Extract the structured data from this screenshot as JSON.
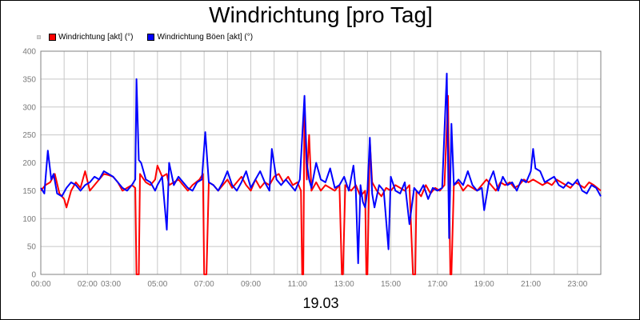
{
  "title": "Windrichtung [pro Tag]",
  "date_label": "19.03",
  "legend": [
    {
      "label": "Windrichtung [akt] (°)",
      "color": "#ff0000"
    },
    {
      "label": "Windrichtung Böen [akt] (°)",
      "color": "#0000ff"
    }
  ],
  "chart_data": {
    "type": "line",
    "title": "Windrichtung [pro Tag]",
    "xlabel": "19.03",
    "ylabel": "",
    "ylim": [
      0,
      400
    ],
    "xlim": [
      0,
      24
    ],
    "grid": true,
    "legend_position": "top-left",
    "y_ticks": [
      "0",
      "50",
      "100",
      "150",
      "200",
      "250",
      "300",
      "350",
      "400"
    ],
    "x_ticks": [
      "00:00",
      "02:00",
      "03:00",
      "05:00",
      "07:00",
      "09:00",
      "11:00",
      "13:00",
      "15:00",
      "17:00",
      "19:00",
      "21:00",
      "23:00"
    ],
    "series": [
      {
        "name": "Windrichtung [akt] (°)",
        "color": "#ff0000",
        "points": [
          [
            0.0,
            150
          ],
          [
            0.2,
            160
          ],
          [
            0.4,
            165
          ],
          [
            0.6,
            180
          ],
          [
            0.8,
            145
          ],
          [
            1.0,
            135
          ],
          [
            1.1,
            120
          ],
          [
            1.3,
            150
          ],
          [
            1.5,
            165
          ],
          [
            1.7,
            155
          ],
          [
            1.9,
            185
          ],
          [
            2.1,
            150
          ],
          [
            2.3,
            160
          ],
          [
            2.5,
            170
          ],
          [
            2.7,
            180
          ],
          [
            2.9,
            178
          ],
          [
            3.1,
            175
          ],
          [
            3.3,
            165
          ],
          [
            3.5,
            150
          ],
          [
            3.7,
            155
          ],
          [
            3.9,
            160
          ],
          [
            4.05,
            155
          ],
          [
            4.1,
            0
          ],
          [
            4.2,
            0
          ],
          [
            4.25,
            180
          ],
          [
            4.5,
            165
          ],
          [
            4.7,
            160
          ],
          [
            4.9,
            170
          ],
          [
            5.0,
            195
          ],
          [
            5.2,
            175
          ],
          [
            5.4,
            180
          ],
          [
            5.5,
            160
          ],
          [
            5.7,
            165
          ],
          [
            5.9,
            170
          ],
          [
            6.1,
            160
          ],
          [
            6.3,
            150
          ],
          [
            6.5,
            160
          ],
          [
            6.8,
            170
          ],
          [
            6.95,
            180
          ],
          [
            7.0,
            0
          ],
          [
            7.1,
            0
          ],
          [
            7.2,
            165
          ],
          [
            7.4,
            160
          ],
          [
            7.6,
            150
          ],
          [
            7.8,
            160
          ],
          [
            8.0,
            170
          ],
          [
            8.2,
            155
          ],
          [
            8.4,
            165
          ],
          [
            8.6,
            175
          ],
          [
            8.8,
            160
          ],
          [
            9.0,
            150
          ],
          [
            9.2,
            170
          ],
          [
            9.4,
            155
          ],
          [
            9.6,
            165
          ],
          [
            9.8,
            160
          ],
          [
            10.0,
            175
          ],
          [
            10.2,
            180
          ],
          [
            10.4,
            165
          ],
          [
            10.6,
            175
          ],
          [
            10.8,
            160
          ],
          [
            11.0,
            165
          ],
          [
            11.15,
            150
          ],
          [
            11.2,
            0
          ],
          [
            11.25,
            0
          ],
          [
            11.3,
            305
          ],
          [
            11.4,
            170
          ],
          [
            11.5,
            250
          ],
          [
            11.6,
            150
          ],
          [
            11.8,
            165
          ],
          [
            12.0,
            150
          ],
          [
            12.2,
            160
          ],
          [
            12.4,
            155
          ],
          [
            12.6,
            150
          ],
          [
            12.8,
            160
          ],
          [
            12.9,
            0
          ],
          [
            12.95,
            0
          ],
          [
            13.05,
            160
          ],
          [
            13.3,
            150
          ],
          [
            13.5,
            160
          ],
          [
            13.7,
            140
          ],
          [
            13.9,
            150
          ],
          [
            13.95,
            0
          ],
          [
            14.0,
            0
          ],
          [
            14.1,
            240
          ],
          [
            14.2,
            165
          ],
          [
            14.4,
            150
          ],
          [
            14.6,
            140
          ],
          [
            14.8,
            155
          ],
          [
            15.0,
            150
          ],
          [
            15.2,
            160
          ],
          [
            15.4,
            155
          ],
          [
            15.6,
            150
          ],
          [
            15.8,
            160
          ],
          [
            15.95,
            0
          ],
          [
            16.05,
            0
          ],
          [
            16.1,
            150
          ],
          [
            16.3,
            140
          ],
          [
            16.5,
            160
          ],
          [
            16.7,
            145
          ],
          [
            16.9,
            155
          ],
          [
            17.1,
            150
          ],
          [
            17.3,
            160
          ],
          [
            17.45,
            320
          ],
          [
            17.55,
            0
          ],
          [
            17.6,
            0
          ],
          [
            17.7,
            160
          ],
          [
            17.9,
            165
          ],
          [
            18.1,
            150
          ],
          [
            18.3,
            160
          ],
          [
            18.5,
            155
          ],
          [
            18.7,
            150
          ],
          [
            18.9,
            160
          ],
          [
            19.1,
            170
          ],
          [
            19.3,
            160
          ],
          [
            19.5,
            150
          ],
          [
            19.7,
            165
          ],
          [
            19.9,
            160
          ],
          [
            20.1,
            165
          ],
          [
            20.3,
            155
          ],
          [
            20.5,
            160
          ],
          [
            20.7,
            170
          ],
          [
            20.9,
            165
          ],
          [
            21.1,
            170
          ],
          [
            21.3,
            165
          ],
          [
            21.5,
            160
          ],
          [
            21.7,
            165
          ],
          [
            21.9,
            160
          ],
          [
            22.1,
            170
          ],
          [
            22.3,
            165
          ],
          [
            22.5,
            160
          ],
          [
            22.7,
            155
          ],
          [
            22.9,
            165
          ],
          [
            23.1,
            160
          ],
          [
            23.3,
            155
          ],
          [
            23.5,
            165
          ],
          [
            23.7,
            160
          ],
          [
            24.0,
            150
          ]
        ]
      },
      {
        "name": "Windrichtung Böen [akt] (°)",
        "color": "#0000ff",
        "points": [
          [
            0.0,
            155
          ],
          [
            0.15,
            145
          ],
          [
            0.3,
            222
          ],
          [
            0.45,
            170
          ],
          [
            0.55,
            180
          ],
          [
            0.7,
            145
          ],
          [
            0.9,
            140
          ],
          [
            1.1,
            155
          ],
          [
            1.3,
            165
          ],
          [
            1.5,
            160
          ],
          [
            1.7,
            150
          ],
          [
            1.9,
            160
          ],
          [
            2.1,
            165
          ],
          [
            2.3,
            175
          ],
          [
            2.5,
            170
          ],
          [
            2.7,
            185
          ],
          [
            2.9,
            180
          ],
          [
            3.1,
            175
          ],
          [
            3.3,
            165
          ],
          [
            3.5,
            155
          ],
          [
            3.7,
            150
          ],
          [
            3.9,
            160
          ],
          [
            4.05,
            170
          ],
          [
            4.1,
            350
          ],
          [
            4.2,
            205
          ],
          [
            4.3,
            200
          ],
          [
            4.5,
            170
          ],
          [
            4.7,
            165
          ],
          [
            4.9,
            150
          ],
          [
            5.0,
            160
          ],
          [
            5.2,
            175
          ],
          [
            5.4,
            80
          ],
          [
            5.5,
            200
          ],
          [
            5.7,
            160
          ],
          [
            5.9,
            175
          ],
          [
            6.1,
            165
          ],
          [
            6.3,
            155
          ],
          [
            6.5,
            150
          ],
          [
            6.7,
            165
          ],
          [
            6.9,
            170
          ],
          [
            7.05,
            255
          ],
          [
            7.2,
            165
          ],
          [
            7.4,
            160
          ],
          [
            7.6,
            150
          ],
          [
            7.8,
            165
          ],
          [
            8.0,
            185
          ],
          [
            8.2,
            160
          ],
          [
            8.4,
            150
          ],
          [
            8.6,
            165
          ],
          [
            8.8,
            185
          ],
          [
            9.0,
            155
          ],
          [
            9.2,
            170
          ],
          [
            9.4,
            185
          ],
          [
            9.6,
            165
          ],
          [
            9.8,
            150
          ],
          [
            9.9,
            225
          ],
          [
            10.1,
            170
          ],
          [
            10.3,
            160
          ],
          [
            10.5,
            170
          ],
          [
            10.7,
            160
          ],
          [
            10.9,
            150
          ],
          [
            11.1,
            170
          ],
          [
            11.3,
            320
          ],
          [
            11.4,
            200
          ],
          [
            11.5,
            170
          ],
          [
            11.6,
            155
          ],
          [
            11.8,
            200
          ],
          [
            12.0,
            170
          ],
          [
            12.2,
            165
          ],
          [
            12.4,
            190
          ],
          [
            12.6,
            155
          ],
          [
            12.8,
            160
          ],
          [
            13.0,
            175
          ],
          [
            13.2,
            150
          ],
          [
            13.4,
            195
          ],
          [
            13.5,
            150
          ],
          [
            13.6,
            20
          ],
          [
            13.7,
            160
          ],
          [
            13.8,
            130
          ],
          [
            13.9,
            120
          ],
          [
            14.0,
            150
          ],
          [
            14.1,
            245
          ],
          [
            14.2,
            145
          ],
          [
            14.3,
            120
          ],
          [
            14.5,
            160
          ],
          [
            14.7,
            150
          ],
          [
            14.9,
            45
          ],
          [
            15.0,
            175
          ],
          [
            15.2,
            150
          ],
          [
            15.4,
            145
          ],
          [
            15.6,
            165
          ],
          [
            15.8,
            90
          ],
          [
            16.0,
            155
          ],
          [
            16.2,
            145
          ],
          [
            16.4,
            160
          ],
          [
            16.6,
            135
          ],
          [
            16.8,
            155
          ],
          [
            17.0,
            150
          ],
          [
            17.2,
            155
          ],
          [
            17.4,
            360
          ],
          [
            17.5,
            65
          ],
          [
            17.6,
            270
          ],
          [
            17.7,
            160
          ],
          [
            17.9,
            170
          ],
          [
            18.1,
            160
          ],
          [
            18.3,
            185
          ],
          [
            18.5,
            160
          ],
          [
            18.7,
            150
          ],
          [
            18.9,
            155
          ],
          [
            19.0,
            115
          ],
          [
            19.2,
            165
          ],
          [
            19.4,
            185
          ],
          [
            19.6,
            150
          ],
          [
            19.8,
            175
          ],
          [
            20.0,
            160
          ],
          [
            20.2,
            165
          ],
          [
            20.4,
            150
          ],
          [
            20.6,
            170
          ],
          [
            20.8,
            165
          ],
          [
            21.0,
            185
          ],
          [
            21.1,
            225
          ],
          [
            21.2,
            190
          ],
          [
            21.4,
            185
          ],
          [
            21.6,
            165
          ],
          [
            21.8,
            170
          ],
          [
            22.0,
            175
          ],
          [
            22.2,
            160
          ],
          [
            22.4,
            155
          ],
          [
            22.6,
            165
          ],
          [
            22.8,
            160
          ],
          [
            23.0,
            170
          ],
          [
            23.2,
            150
          ],
          [
            23.4,
            145
          ],
          [
            23.6,
            160
          ],
          [
            23.8,
            155
          ],
          [
            24.0,
            140
          ]
        ]
      }
    ]
  }
}
